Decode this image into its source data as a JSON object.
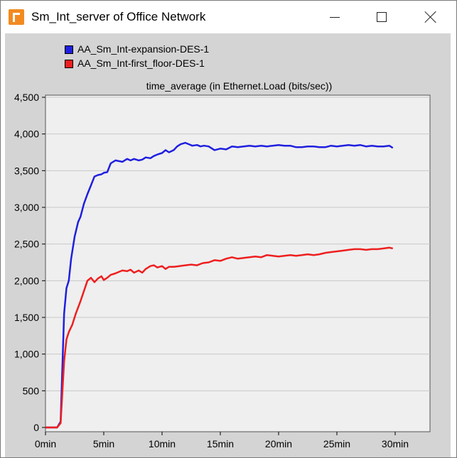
{
  "window": {
    "title": "Sm_Int_server of Office Network",
    "app_icon": "opnet-icon",
    "controls": [
      "minimize",
      "maximize",
      "close"
    ]
  },
  "colors": {
    "plot_background": "#efefef",
    "frame_background": "#d4d4d4",
    "grid": "#c8c8c8",
    "series_blue": "#1f1fe0",
    "series_red": "#ee1f1f"
  },
  "chart_data": {
    "type": "line",
    "title": "time_average (in Ethernet.Load (bits/sec))",
    "xlabel": "",
    "ylabel": "",
    "xlim": [
      0,
      32
    ],
    "ylim": [
      0,
      4500
    ],
    "x_ticks": [
      0,
      5,
      10,
      15,
      20,
      25,
      30
    ],
    "x_tick_labels": [
      "0min",
      "5min",
      "10min",
      "15min",
      "20min",
      "25min",
      "30min"
    ],
    "y_ticks": [
      0,
      500,
      1000,
      1500,
      2000,
      2500,
      3000,
      3500,
      4000,
      4500
    ],
    "y_tick_labels": [
      "0",
      "500",
      "1,000",
      "1,500",
      "2,000",
      "2,500",
      "3,000",
      "3,500",
      "4,000",
      "4,500"
    ],
    "grid": true,
    "legend_position": "top-left",
    "series": [
      {
        "name": "AA_Sm_Int-expansion-DES-1",
        "color": "#1f1fe0",
        "x": [
          0,
          0.5,
          1.0,
          1.3,
          1.6,
          1.8,
          2.0,
          2.2,
          2.5,
          2.8,
          3.0,
          3.3,
          3.6,
          3.9,
          4.2,
          4.5,
          4.8,
          5.0,
          5.3,
          5.6,
          6.0,
          6.3,
          6.6,
          7.0,
          7.3,
          7.6,
          8.0,
          8.3,
          8.6,
          9.0,
          9.3,
          9.6,
          10.0,
          10.3,
          10.6,
          11.0,
          11.3,
          11.6,
          12.0,
          12.3,
          12.6,
          13.0,
          13.3,
          13.6,
          14.0,
          14.5,
          15.0,
          15.5,
          16.0,
          16.5,
          17.0,
          17.5,
          18.0,
          18.5,
          19.0,
          19.5,
          20.0,
          20.5,
          21.0,
          21.5,
          22.0,
          22.5,
          23.0,
          23.5,
          24.0,
          24.5,
          25.0,
          25.5,
          26.0,
          26.5,
          27.0,
          27.5,
          28.0,
          28.5,
          29.0,
          29.5,
          29.8
        ],
        "y": [
          0,
          0,
          0,
          80,
          1550,
          1900,
          2000,
          2300,
          2600,
          2800,
          2870,
          3050,
          3180,
          3300,
          3420,
          3440,
          3450,
          3470,
          3480,
          3600,
          3640,
          3630,
          3620,
          3660,
          3640,
          3660,
          3640,
          3650,
          3680,
          3670,
          3700,
          3720,
          3740,
          3780,
          3750,
          3780,
          3830,
          3860,
          3880,
          3860,
          3840,
          3850,
          3830,
          3840,
          3830,
          3780,
          3800,
          3790,
          3830,
          3820,
          3830,
          3840,
          3830,
          3840,
          3830,
          3840,
          3850,
          3840,
          3840,
          3820,
          3820,
          3830,
          3830,
          3820,
          3820,
          3840,
          3830,
          3840,
          3850,
          3840,
          3850,
          3830,
          3840,
          3830,
          3830,
          3840,
          3810
        ]
      },
      {
        "name": "AA_Sm_Int-first_floor-DES-1",
        "color": "#ee1f1f",
        "x": [
          0,
          0.5,
          1.0,
          1.3,
          1.6,
          1.8,
          2.0,
          2.3,
          2.6,
          3.0,
          3.3,
          3.6,
          3.9,
          4.2,
          4.5,
          4.8,
          5.0,
          5.3,
          5.6,
          6.0,
          6.3,
          6.6,
          7.0,
          7.3,
          7.6,
          8.0,
          8.3,
          8.6,
          9.0,
          9.3,
          9.6,
          10.0,
          10.3,
          10.6,
          11.0,
          11.5,
          12.0,
          12.5,
          13.0,
          13.5,
          14.0,
          14.5,
          15.0,
          15.5,
          16.0,
          16.5,
          17.0,
          17.5,
          18.0,
          18.5,
          19.0,
          19.5,
          20.0,
          20.5,
          21.0,
          21.5,
          22.0,
          22.5,
          23.0,
          23.5,
          24.0,
          24.5,
          25.0,
          25.5,
          26.0,
          26.5,
          27.0,
          27.5,
          28.0,
          28.5,
          29.0,
          29.5,
          29.8
        ],
        "y": [
          0,
          0,
          0,
          60,
          900,
          1200,
          1300,
          1400,
          1550,
          1720,
          1860,
          2000,
          2040,
          1980,
          2030,
          2060,
          2010,
          2040,
          2080,
          2100,
          2120,
          2140,
          2130,
          2150,
          2110,
          2140,
          2110,
          2160,
          2200,
          2210,
          2180,
          2200,
          2160,
          2190,
          2190,
          2200,
          2210,
          2220,
          2210,
          2240,
          2250,
          2280,
          2270,
          2300,
          2320,
          2300,
          2310,
          2320,
          2330,
          2320,
          2350,
          2340,
          2330,
          2340,
          2350,
          2340,
          2350,
          2360,
          2350,
          2360,
          2380,
          2390,
          2400,
          2410,
          2420,
          2430,
          2430,
          2420,
          2430,
          2430,
          2440,
          2450,
          2440
        ]
      }
    ]
  }
}
